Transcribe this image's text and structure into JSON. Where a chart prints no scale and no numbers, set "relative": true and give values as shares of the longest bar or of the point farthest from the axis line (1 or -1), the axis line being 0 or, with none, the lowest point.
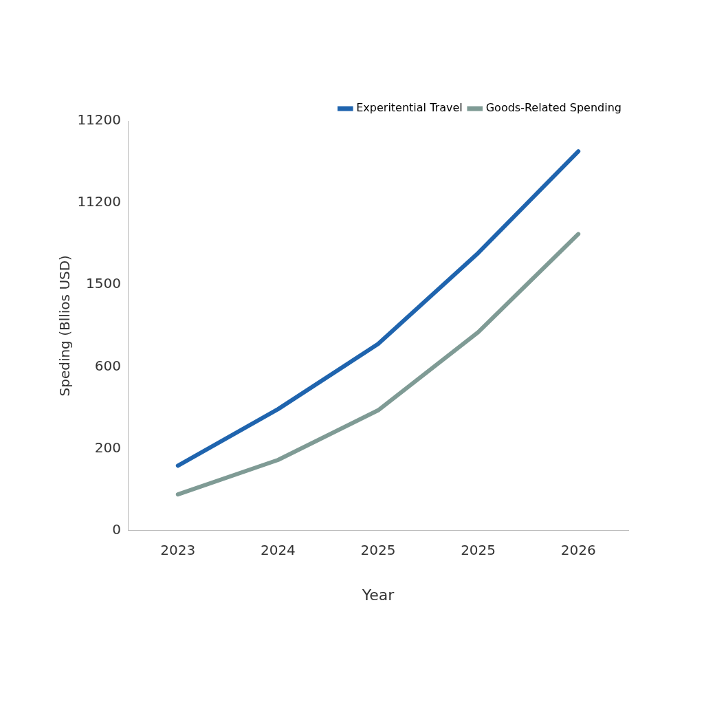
{
  "chart_data": {
    "type": "line",
    "xlabel": "Year",
    "ylabel": "Speding (Bllios USD)",
    "categories": [
      "2023",
      "2024",
      "2025",
      "2025",
      "2026"
    ],
    "series": [
      {
        "name": "Experitential Travel",
        "color": "#1f64ae",
        "values": [
          0.171,
          0.32,
          0.492,
          0.732,
          1
        ]
      },
      {
        "name": "Goods-Related Spending",
        "color": "#7f9b95",
        "values": [
          0.095,
          0.186,
          0.317,
          0.523,
          0.782
        ]
      }
    ],
    "relative": true,
    "annotations": [
      "0",
      "200",
      "600",
      "1500",
      "11200",
      "11200"
    ],
    "grid": false,
    "legend": "top right",
    "marker": "none",
    "line_style": "solid"
  }
}
